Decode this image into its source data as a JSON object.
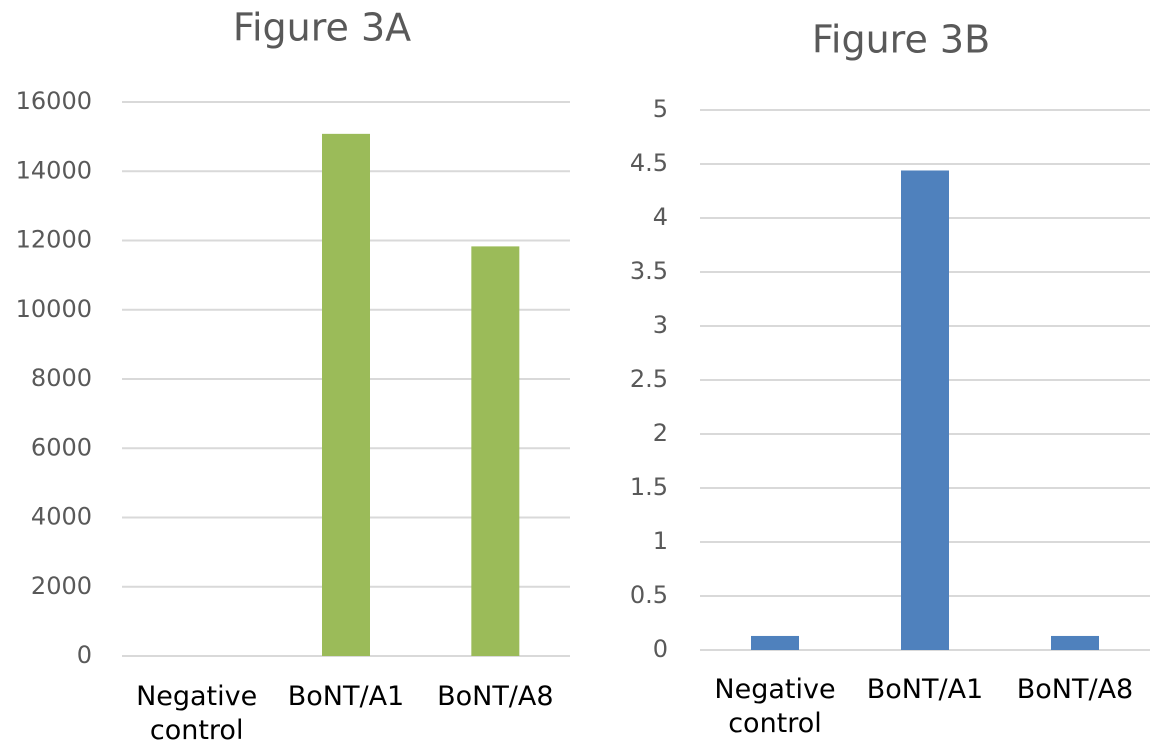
{
  "chart_data": [
    {
      "type": "bar",
      "title": "Figure 3A",
      "categories": [
        "Negative control",
        "BoNT/A1",
        "BoNT/A8"
      ],
      "values": [
        0,
        15080,
        11830
      ],
      "color": "#9bbb59",
      "ylim": [
        0,
        16000
      ],
      "yticks": [
        0,
        2000,
        4000,
        6000,
        8000,
        10000,
        12000,
        14000,
        16000
      ],
      "grid": true
    },
    {
      "type": "bar",
      "title": "Figure 3B",
      "categories": [
        "Negative control",
        "BoNT/A1",
        "BoNT/A8"
      ],
      "values": [
        0.13,
        4.44,
        0.13
      ],
      "color": "#4f81bd",
      "ylim": [
        0,
        5
      ],
      "yticks": [
        0,
        0.5,
        1,
        1.5,
        2,
        2.5,
        3,
        3.5,
        4,
        4.5,
        5
      ],
      "grid": true
    }
  ]
}
